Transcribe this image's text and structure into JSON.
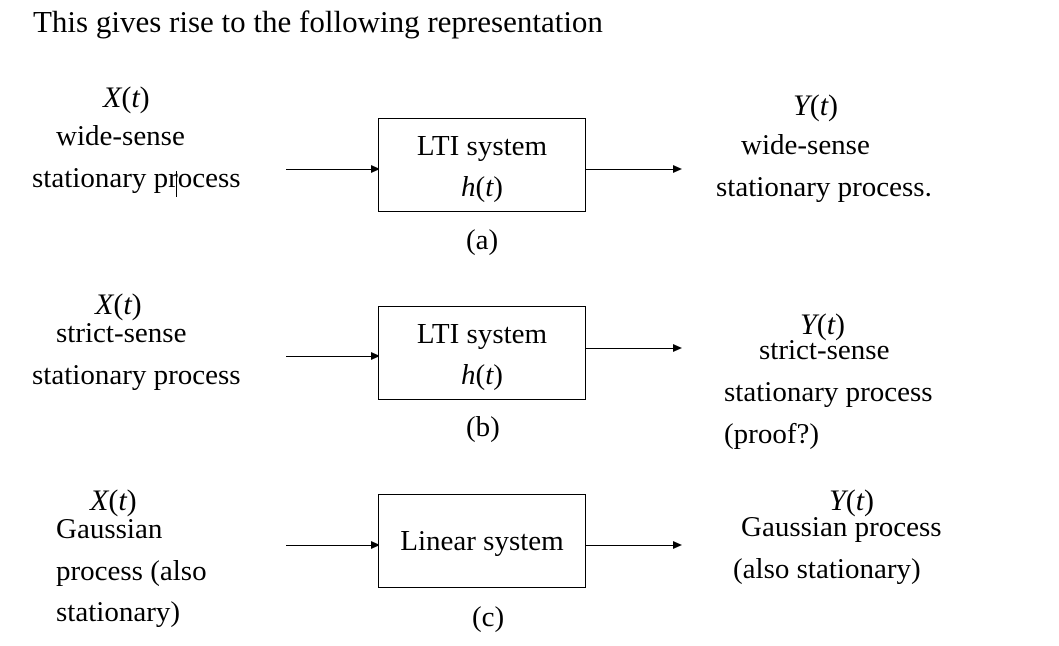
{
  "title": "This gives rise to the following representation",
  "rows": [
    {
      "input_symbol": "X(t)",
      "input_lines": [
        "wide-sense",
        "stationary process"
      ],
      "system_lines": [
        "LTI system",
        "h(t)"
      ],
      "caption": "(a)",
      "output_symbol": "Y(t)",
      "output_lines": [
        "wide-sense",
        "stationary process."
      ]
    },
    {
      "input_symbol": "X(t)",
      "input_lines": [
        "strict-sense",
        "stationary process"
      ],
      "system_lines": [
        "LTI system",
        "h(t)"
      ],
      "caption": "(b)",
      "output_symbol": "Y(t)",
      "output_lines": [
        "strict-sense",
        "stationary process",
        "(proof?)"
      ]
    },
    {
      "input_symbol": "X(t)",
      "input_lines": [
        "Gaussian",
        "process (also",
        "stationary)"
      ],
      "system_lines": [
        "Linear system"
      ],
      "caption": "(c)",
      "output_symbol": "Y(t)",
      "output_lines": [
        "Gaussian process",
        "(also stationary)"
      ]
    }
  ]
}
